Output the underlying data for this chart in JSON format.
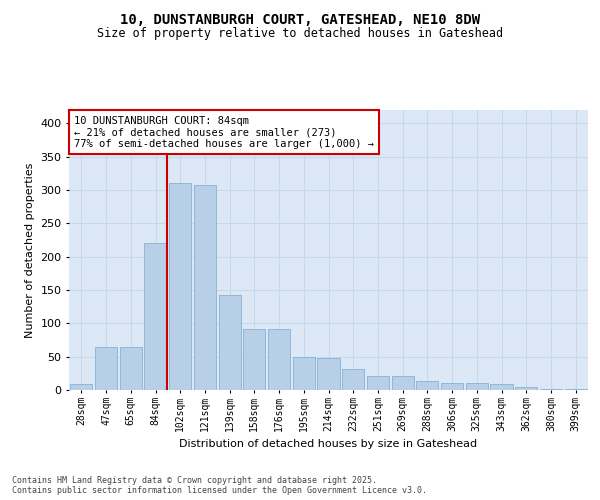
{
  "title_line1": "10, DUNSTANBURGH COURT, GATESHEAD, NE10 8DW",
  "title_line2": "Size of property relative to detached houses in Gateshead",
  "xlabel": "Distribution of detached houses by size in Gateshead",
  "ylabel": "Number of detached properties",
  "categories": [
    "28sqm",
    "47sqm",
    "65sqm",
    "84sqm",
    "102sqm",
    "121sqm",
    "139sqm",
    "158sqm",
    "176sqm",
    "195sqm",
    "214sqm",
    "232sqm",
    "251sqm",
    "269sqm",
    "288sqm",
    "306sqm",
    "325sqm",
    "343sqm",
    "362sqm",
    "380sqm",
    "399sqm"
  ],
  "values": [
    9,
    65,
    65,
    220,
    310,
    308,
    143,
    92,
    92,
    49,
    48,
    32,
    21,
    21,
    14,
    11,
    10,
    9,
    4,
    2,
    2
  ],
  "bar_color": "#b8cfe8",
  "bar_edge_color": "#7aaad0",
  "grid_color": "#c8d8ea",
  "background_color": "#dce8f5",
  "vline_index": 3,
  "vline_color": "#cc0000",
  "annotation_text": "10 DUNSTANBURGH COURT: 84sqm\n← 21% of detached houses are smaller (273)\n77% of semi-detached houses are larger (1,000) →",
  "annotation_box_color": "#ffffff",
  "annotation_border_color": "#cc0000",
  "footer_text": "Contains HM Land Registry data © Crown copyright and database right 2025.\nContains public sector information licensed under the Open Government Licence v3.0.",
  "ylim": [
    0,
    420
  ],
  "yticks": [
    0,
    50,
    100,
    150,
    200,
    250,
    300,
    350,
    400
  ],
  "fig_width": 6.0,
  "fig_height": 5.0,
  "dpi": 100
}
